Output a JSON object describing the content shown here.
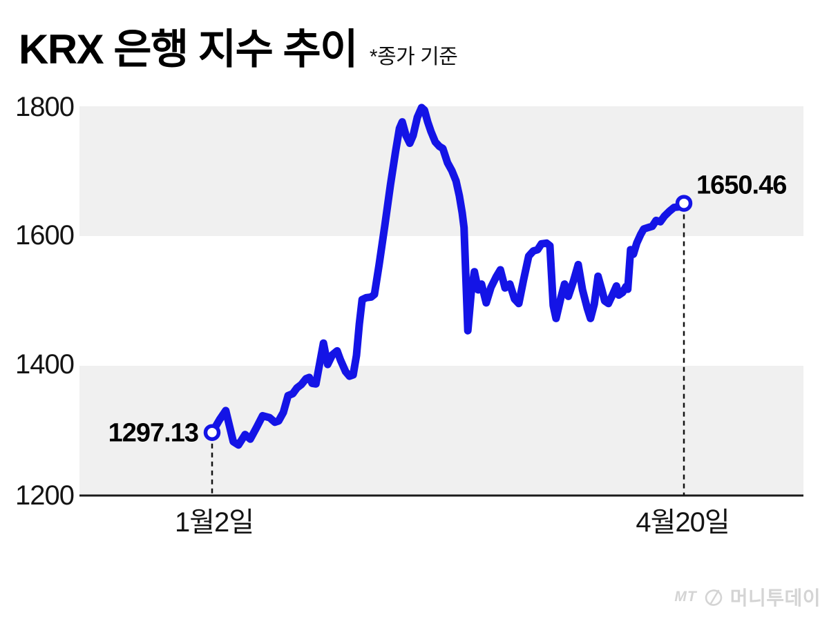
{
  "header": {
    "title": "KRX 은행 지수 추이",
    "subtitle": "*종가 기준"
  },
  "chart_data": {
    "type": "line",
    "title": "KRX 은행 지수 추이",
    "note": "*종가 기준",
    "ylim": [
      1200,
      1800
    ],
    "yticks": [
      1800,
      1600,
      1400,
      1200
    ],
    "grid": "banded",
    "legend": "none",
    "x_axis": {
      "start_label": "1월2일",
      "end_label": "4월20일"
    },
    "start_point": {
      "date_label": "1월2일",
      "value": 1297.13,
      "label": "1297.13"
    },
    "end_point": {
      "date_label": "4월20일",
      "value": 1650.46,
      "label": "1650.46"
    },
    "line_color": "#1414e6",
    "band_color": "#f0f0f0",
    "axis_color": "#1a1a1a",
    "series": [
      {
        "name": "KRX 은행 지수",
        "x_frac": [
          0,
          0.016,
          0.029,
          0.045,
          0.056,
          0.07,
          0.081,
          0.095,
          0.107,
          0.122,
          0.133,
          0.141,
          0.151,
          0.161,
          0.171,
          0.18,
          0.189,
          0.199,
          0.206,
          0.212,
          0.22,
          0.236,
          0.245,
          0.255,
          0.265,
          0.272,
          0.283,
          0.291,
          0.299,
          0.306,
          0.312,
          0.318,
          0.327,
          0.337,
          0.344,
          0.354,
          0.366,
          0.378,
          0.389,
          0.397,
          0.403,
          0.411,
          0.419,
          0.426,
          0.435,
          0.444,
          0.45,
          0.457,
          0.464,
          0.473,
          0.482,
          0.489,
          0.499,
          0.508,
          0.517,
          0.524,
          0.53,
          0.534,
          0.542,
          0.549,
          0.556,
          0.564,
          0.571,
          0.581,
          0.591,
          0.602,
          0.611,
          0.621,
          0.631,
          0.641,
          0.65,
          0.66,
          0.671,
          0.681,
          0.69,
          0.698,
          0.709,
          0.716,
          0.723,
          0.729,
          0.739,
          0.747,
          0.755,
          0.766,
          0.776,
          0.785,
          0.795,
          0.802,
          0.81,
          0.818,
          0.826,
          0.832,
          0.84,
          0.849,
          0.857,
          0.862,
          0.87,
          0.877,
          0.881,
          0.887,
          0.893,
          0.9,
          0.908,
          0.915,
          0.924,
          0.933,
          0.941,
          0.95,
          0.959,
          0.969,
          0.979,
          0.99,
          1.0
        ],
        "values": [
          1297.13,
          1317,
          1331,
          1283,
          1278,
          1294,
          1287,
          1306,
          1323,
          1320,
          1313,
          1315,
          1328,
          1354,
          1357,
          1366,
          1371,
          1380,
          1382,
          1373,
          1372,
          1435,
          1402,
          1417,
          1423,
          1409,
          1391,
          1384,
          1386,
          1416,
          1464,
          1502,
          1505,
          1506,
          1510,
          1556,
          1616,
          1679,
          1731,
          1766,
          1776,
          1755,
          1743,
          1755,
          1783,
          1798,
          1794,
          1776,
          1761,
          1745,
          1738,
          1735,
          1713,
          1701,
          1685,
          1662,
          1636,
          1613,
          1454,
          1512,
          1545,
          1517,
          1526,
          1497,
          1521,
          1537,
          1548,
          1520,
          1526,
          1503,
          1496,
          1532,
          1569,
          1577,
          1579,
          1588,
          1589,
          1585,
          1493,
          1473,
          1504,
          1526,
          1507,
          1531,
          1556,
          1517,
          1489,
          1473,
          1495,
          1538,
          1517,
          1500,
          1496,
          1510,
          1523,
          1509,
          1513,
          1522,
          1518,
          1579,
          1572,
          1589,
          1602,
          1611,
          1613,
          1615,
          1624,
          1622,
          1631,
          1638,
          1644,
          1645,
          1650.46
        ]
      }
    ]
  },
  "footer": {
    "logo_mt": "MT",
    "logo_name": "머니투데이"
  }
}
